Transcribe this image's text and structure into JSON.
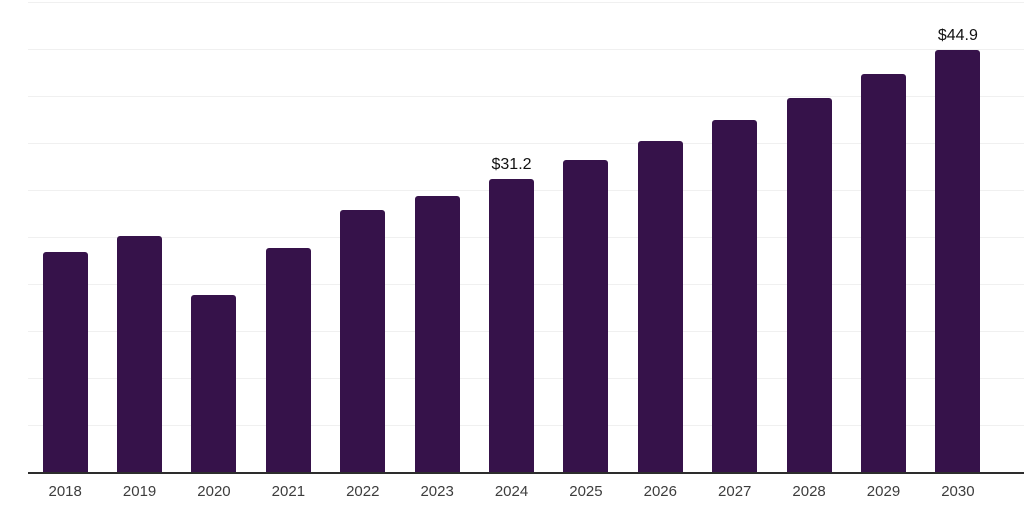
{
  "chart_data": {
    "type": "bar",
    "title": "",
    "xlabel": "",
    "ylabel": "",
    "categories": [
      "2018",
      "2019",
      "2020",
      "2021",
      "2022",
      "2023",
      "2024",
      "2025",
      "2026",
      "2027",
      "2028",
      "2029",
      "2030"
    ],
    "values": [
      23.4,
      25.1,
      18.8,
      23.8,
      27.9,
      29.4,
      31.2,
      33.2,
      35.2,
      37.4,
      39.8,
      42.3,
      44.9
    ],
    "value_labels": [
      {
        "category": "2024",
        "text": "$31.2"
      },
      {
        "category": "2030",
        "text": "$44.9"
      }
    ],
    "ylim": [
      0,
      50
    ],
    "gridline_interval": 5,
    "grid": "horizontal",
    "legend": "none",
    "colors": {
      "bar": "#36124a",
      "axis_line": "#2d2d2d",
      "gridline": "#f0f0f0",
      "tick_label": "#3d3d3d",
      "value_label": "#111111",
      "background": "#ffffff"
    }
  }
}
